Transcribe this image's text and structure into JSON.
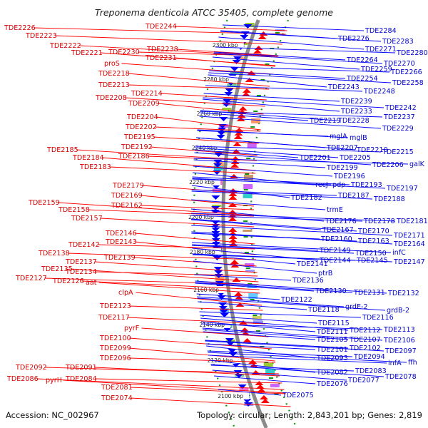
{
  "title": "Treponema denticola ATCC 35405, complete genome",
  "accession": "Accession: NC_002967",
  "summary": "Topology: circular; Length: 2,843,201 bp; Genes: 2,819",
  "colors": {
    "forward_strand": "#ff0000",
    "reverse_strand": "#0000ff",
    "backbone": "#8a8a8a",
    "tick": "#119911"
  },
  "scale_labels": [
    "2300 kbp",
    "2280 kbp",
    "2260 kbp",
    "2240 kbp",
    "2220 kbp",
    "2200 kbp",
    "2180 kbp",
    "2160 kbp",
    "2140 kbp",
    "2120 kbp",
    "2100 kbp"
  ],
  "left_labels": [
    "TDE2244",
    "TDE2226",
    "TDE2223",
    "TDE2222",
    "TDE2221",
    "TDE2230",
    "TDE2238",
    "TDE2231",
    "proS",
    "TDE2218",
    "TDE2213",
    "TDE2214",
    "TDE2208",
    "TDE2209",
    "TDE2204",
    "TDE2202",
    "TDE2195",
    "TDE2192",
    "TDE2185",
    "TDE2184",
    "TDE2186",
    "TDE2183",
    "TDE2179",
    "TDE2169",
    "TDE2159",
    "TDE2162",
    "TDE2158",
    "TDE2157",
    "TDE2146",
    "TDE2143",
    "TDE2142",
    "TDE2138",
    "TDE2139",
    "TDE2137",
    "TDE2135",
    "TDE2134",
    "TDE2127",
    "TDE2126",
    "aat",
    "clpA",
    "TDE2123",
    "TDE2117",
    "pyrF",
    "TDE2100",
    "TDE2099",
    "TDE2096",
    "TDE2092",
    "TDE2091",
    "TDE2086",
    "pyrH",
    "TDE2084",
    "TDE2081",
    "TDE2074"
  ],
  "right_labels": [
    "TDE2284",
    "TDE2276",
    "TDE2283",
    "TDE2271",
    "TDE2280",
    "TDE2264",
    "TDE2270",
    "TDE2259",
    "TDE2266",
    "TDE2254",
    "TDE2258",
    "TDE2243",
    "TDE2248",
    "TDE2239",
    "TDE2242",
    "TDE2233",
    "TDE2237",
    "TDE2219",
    "TDE2228",
    "TDE2229",
    "mglA",
    "mglB",
    "TDE2207",
    "TDE2210",
    "TDE2215",
    "TDE2201",
    "TDE2205",
    "TDE2206",
    "galK",
    "TDE2199",
    "TDE2196",
    "recJ",
    "pdp",
    "TDE2193",
    "TDE2197",
    "TDE2182",
    "TDE2187",
    "TDE2188",
    "trmE",
    "TDE2176",
    "TDE2178",
    "TDE2181",
    "TDE2167",
    "TDE2170",
    "TDE2160",
    "TDE2163",
    "TDE2171",
    "TDE2164",
    "TDE2149",
    "TDE2150",
    "infC",
    "TDE2144",
    "TDE2145",
    "TDE2147",
    "TDE2141",
    "ptrB",
    "TDE2136",
    "TDE2130",
    "TDE2131",
    "TDE2132",
    "TDE2122",
    "TDE2118",
    "grdE-2",
    "grdB-2",
    "TDE2116",
    "TDE2115",
    "TDE2111",
    "TDE2112",
    "TDE2113",
    "TDE2105",
    "TDE2107",
    "TDE2106",
    "TDE2101",
    "TDE2102",
    "TDE2097",
    "TDE2093",
    "TDE2094",
    "infA",
    "ffh",
    "TDE2082",
    "TDE2083",
    "TDE2076",
    "TDE2077",
    "TDE2078",
    "TDE2075"
  ]
}
